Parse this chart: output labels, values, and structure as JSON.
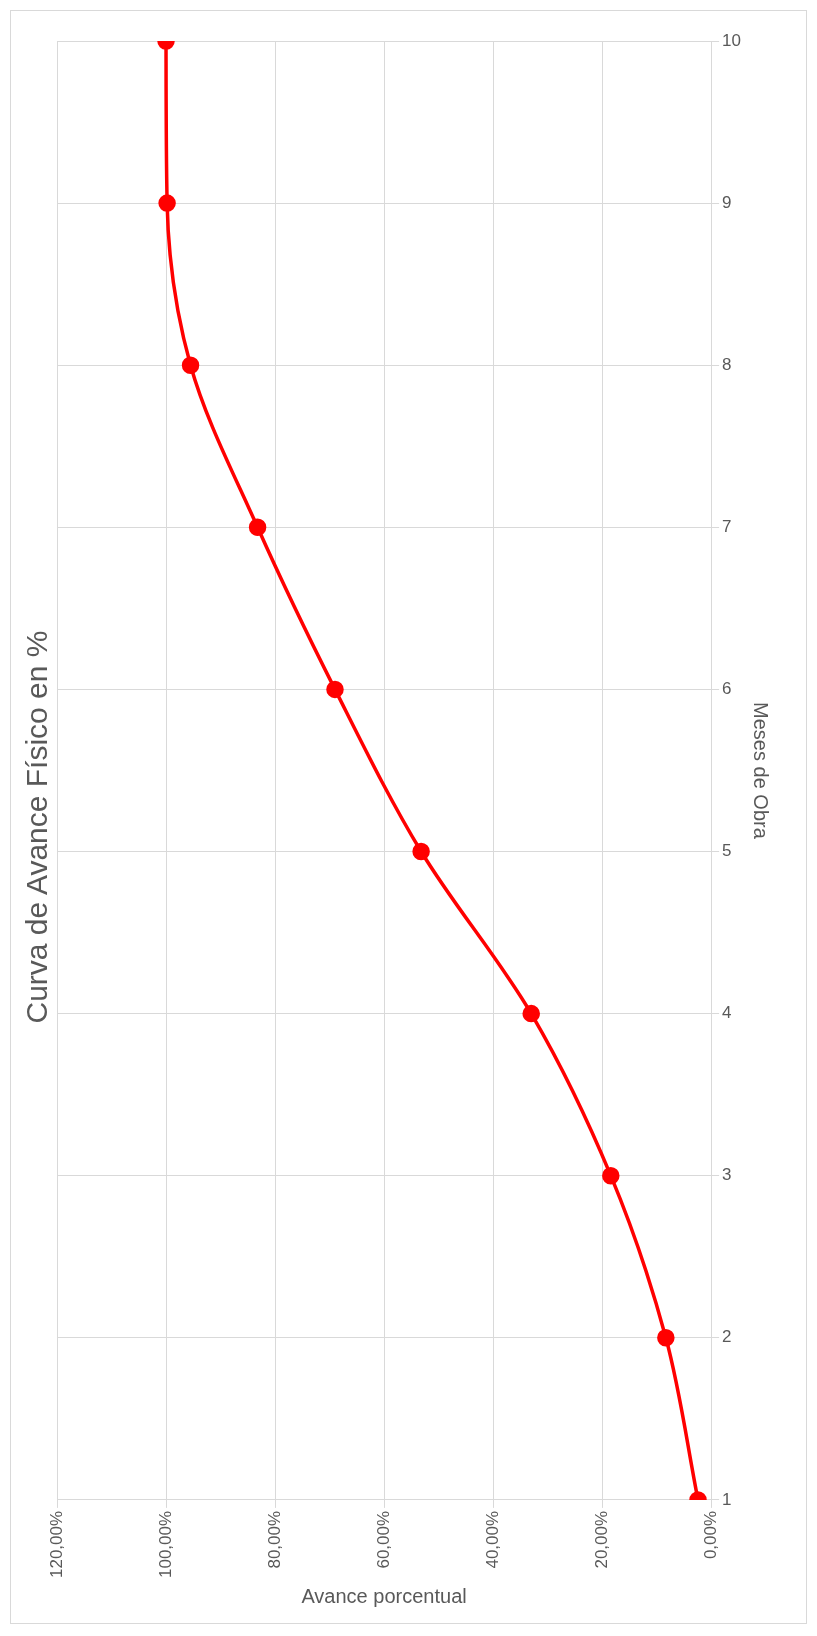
{
  "chart_data": {
    "type": "line",
    "title": "Curva de Avance Físico en %",
    "xlabel": "Avance porcentual",
    "ylabel": "Meses de Obra",
    "series": [
      {
        "color": "#ff0000",
        "x": [
          2.4,
          8.3,
          18.4,
          33,
          53.2,
          69,
          83.2,
          95.5,
          99.8,
          100
        ],
        "values": [
          1,
          2,
          3,
          4,
          5,
          6,
          7,
          8,
          9,
          10
        ]
      }
    ],
    "xlim": [
      120,
      0
    ],
    "xticks": [
      {
        "value": 120,
        "label": "120,00%"
      },
      {
        "value": 100,
        "label": "100,00%"
      },
      {
        "value": 80,
        "label": "80,00%"
      },
      {
        "value": 60,
        "label": "60,00%"
      },
      {
        "value": 40,
        "label": "40,00%"
      },
      {
        "value": 20,
        "label": "20,00%"
      },
      {
        "value": 0,
        "label": "0,00%"
      }
    ],
    "ylim": [
      1,
      10
    ],
    "yticks": [
      1,
      2,
      3,
      4,
      5,
      6,
      7,
      8,
      9,
      10
    ],
    "grid": true,
    "legend": false,
    "marker": "circle",
    "line_style": "solid"
  }
}
